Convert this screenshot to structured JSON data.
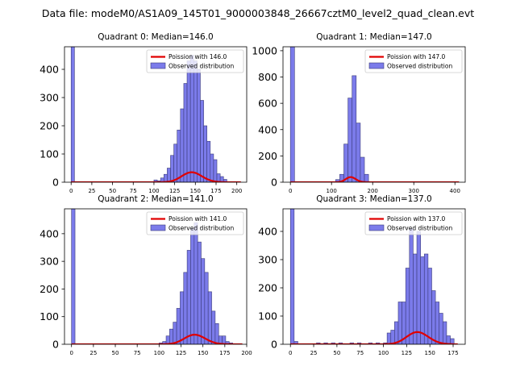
{
  "suptitle": "Data file: modeM0/AS1A09_145T01_9000003848_26667cztM0_level2_quad_clean.evt",
  "colors": {
    "bar_fill": "#7b7bea",
    "bar_edge": "#3b3b7a",
    "curve": "#e00000"
  },
  "chart_data": [
    {
      "type": "bar",
      "title": "Quadrant 0: Median=146.0",
      "legend": [
        "Poission with 146.0",
        "Observed distribution"
      ],
      "legend_position": "top-right",
      "xlim": [
        -8,
        212
      ],
      "ylim": [
        0,
        480
      ],
      "xticks": [
        0,
        25,
        50,
        75,
        100,
        125,
        150,
        175,
        200
      ],
      "yticks": [
        0,
        100,
        200,
        300,
        400
      ],
      "poisson_mean": 146.0,
      "curve_scale": 10.7,
      "curve_xrange": [
        0,
        205
      ],
      "bin_width": 4.0,
      "bins": [
        0,
        100,
        104,
        108,
        112,
        116,
        120,
        124,
        128,
        132,
        136,
        140,
        144,
        148,
        152,
        156,
        160,
        164,
        168,
        172,
        176,
        180,
        184
      ],
      "counts": [
        480,
        8,
        5,
        15,
        28,
        50,
        95,
        135,
        185,
        260,
        350,
        430,
        450,
        430,
        400,
        290,
        200,
        145,
        100,
        80,
        30,
        20,
        10
      ]
    },
    {
      "type": "bar",
      "title": "Quadrant 1: Median=147.0",
      "legend": [
        "Poission with 147.0",
        "Observed distribution"
      ],
      "legend_position": "top-right",
      "xlim": [
        -18,
        425
      ],
      "ylim": [
        0,
        1030
      ],
      "xticks": [
        0,
        100,
        200,
        300,
        400
      ],
      "yticks": [
        0,
        200,
        400,
        600,
        800,
        1000
      ],
      "poisson_mean": 147.0,
      "curve_scale": 11.8,
      "curve_xrange": [
        0,
        410
      ],
      "bin_width": 10.0,
      "bins": [
        0,
        110,
        120,
        130,
        140,
        150,
        160,
        170,
        180
      ],
      "counts": [
        1030,
        20,
        60,
        290,
        640,
        810,
        450,
        190,
        60
      ]
    },
    {
      "type": "bar",
      "title": "Quadrant 2: Median=141.0",
      "legend": [
        "Poission with 141.0",
        "Observed distribution"
      ],
      "legend_position": "top-right",
      "xlim": [
        -8,
        200
      ],
      "ylim": [
        0,
        490
      ],
      "xticks": [
        0,
        25,
        50,
        75,
        100,
        125,
        150,
        175,
        200
      ],
      "yticks": [
        0,
        100,
        200,
        300,
        400
      ],
      "poisson_mean": 141.0,
      "curve_scale": 10.3,
      "curve_xrange": [
        0,
        195
      ],
      "bin_width": 4.0,
      "bins": [
        0,
        100,
        104,
        108,
        112,
        116,
        120,
        124,
        128,
        132,
        136,
        140,
        144,
        148,
        152,
        156,
        160,
        164,
        168,
        172,
        176,
        180
      ],
      "counts": [
        490,
        5,
        10,
        30,
        55,
        80,
        130,
        190,
        260,
        340,
        420,
        440,
        370,
        310,
        260,
        190,
        120,
        75,
        30,
        30,
        10,
        5
      ]
    },
    {
      "type": "bar",
      "title": "Quadrant 3: Median=137.0",
      "legend": [
        "Poission with 137.0",
        "Observed distribution"
      ],
      "legend_position": "top-right",
      "xlim": [
        -8,
        188
      ],
      "ylim": [
        0,
        480
      ],
      "xticks": [
        0,
        25,
        50,
        75,
        100,
        125,
        150,
        175
      ],
      "yticks": [
        0,
        100,
        200,
        300,
        400
      ],
      "poisson_mean": 137.0,
      "curve_scale": 12.7,
      "curve_xrange": [
        0,
        180
      ],
      "bin_width": 4.0,
      "bins": [
        0,
        4,
        28,
        36,
        44,
        52,
        64,
        72,
        84,
        92,
        100,
        104,
        108,
        112,
        116,
        120,
        124,
        128,
        132,
        136,
        140,
        144,
        148,
        152,
        156,
        160,
        164,
        168,
        172
      ],
      "counts": [
        480,
        10,
        5,
        5,
        5,
        5,
        5,
        5,
        5,
        5,
        5,
        40,
        50,
        80,
        150,
        150,
        270,
        410,
        320,
        400,
        310,
        320,
        270,
        190,
        150,
        110,
        80,
        30,
        20
      ]
    }
  ]
}
